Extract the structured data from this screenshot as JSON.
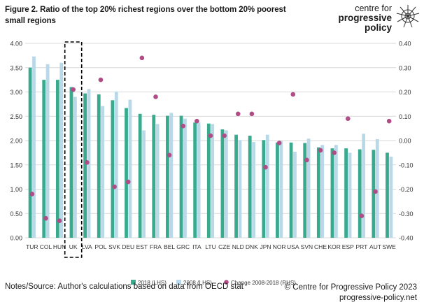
{
  "title": "Figure 2. Ratio of the top 20% richest regions over the bottom 20% poorest small regions",
  "brand": {
    "line1": "centre for",
    "line2": "progressive",
    "line3": "policy"
  },
  "logo_icon": "radial-burst-logo-icon",
  "footer": {
    "source": "Notes/Source:  Author's calculations based on data from OECD stat",
    "copyright": "© Centre for Progressive Policy 2023",
    "website": "progressive-policy.net"
  },
  "colors": {
    "bar2018": "#3aaa8e",
    "bar2008": "#b9d9e9",
    "dots": "#b04d86",
    "grid": "#d9d9d9",
    "highlight": "#000000"
  },
  "chart_data": {
    "type": "bar",
    "categories": [
      "TUR",
      "COL",
      "HUN",
      "UK",
      "LVA",
      "POL",
      "SVK",
      "DEU",
      "EST",
      "FRA",
      "BEL",
      "GRC",
      "ITA",
      "LTU",
      "CZE",
      "NLD",
      "DNK",
      "JPN",
      "NOR",
      "USA",
      "SVN",
      "CHE",
      "KOR",
      "ESP",
      "PRT",
      "AUT",
      "SWE"
    ],
    "series": [
      {
        "name": "2018 (LHS)",
        "axis": "left",
        "kind": "bar",
        "values": [
          3.5,
          3.25,
          3.25,
          3.1,
          2.97,
          2.95,
          2.83,
          2.67,
          2.55,
          2.53,
          2.51,
          2.51,
          2.37,
          2.35,
          2.23,
          2.12,
          2.1,
          2.01,
          1.96,
          1.96,
          1.95,
          1.86,
          1.84,
          1.84,
          1.82,
          1.81,
          1.75
        ]
      },
      {
        "name": "2008 (LHS)",
        "axis": "left",
        "kind": "bar",
        "values": [
          3.73,
          3.57,
          3.6,
          2.9,
          3.06,
          2.71,
          3.01,
          2.84,
          2.21,
          2.34,
          2.57,
          2.45,
          2.37,
          2.34,
          2.21,
          2.01,
          1.97,
          2.12,
          1.99,
          1.77,
          2.04,
          1.91,
          1.91,
          1.75,
          2.14,
          2.03,
          1.67
        ]
      },
      {
        "name": "Change 2008-2018 (RHS)",
        "axis": "right",
        "kind": "scatter",
        "values": [
          -0.22,
          -0.32,
          -0.33,
          0.21,
          -0.09,
          0.25,
          -0.19,
          -0.17,
          0.34,
          0.18,
          -0.06,
          0.06,
          0.08,
          0.02,
          0.02,
          0.11,
          0.11,
          -0.11,
          -0.01,
          0.19,
          -0.08,
          -0.04,
          -0.05,
          0.09,
          -0.31,
          -0.21,
          0.08
        ]
      }
    ],
    "left_axis": {
      "min": 0.0,
      "max": 4.0,
      "step": 0.5,
      "ticks": [
        "0.00",
        "0.50",
        "1.00",
        "1.50",
        "2.00",
        "2.50",
        "3.00",
        "3.50",
        "4.00"
      ]
    },
    "right_axis": {
      "min": -0.4,
      "max": 0.4,
      "step": 0.1,
      "ticks": [
        "-0.40",
        "-0.30",
        "-0.20",
        "-0.10",
        "0.00",
        "0.10",
        "0.20",
        "0.30",
        "0.40"
      ]
    },
    "grid": true,
    "highlight_category": "UK",
    "legend_position": "bottom"
  }
}
